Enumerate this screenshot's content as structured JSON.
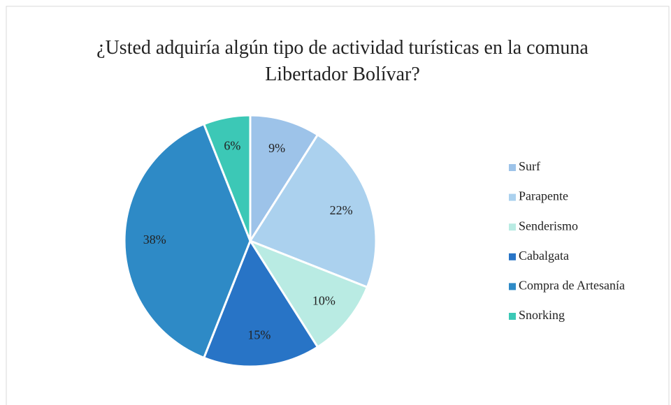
{
  "chart_data": {
    "type": "pie",
    "title": "¿Usted adquiría algún tipo de actividad turísticas en la comuna Libertador Bolívar?",
    "categories": [
      "Surf",
      "Parapente",
      "Senderismo",
      "Cabalgata",
      "Compra de Artesanía",
      "Snorking"
    ],
    "values": [
      9,
      22,
      10,
      15,
      38,
      6
    ],
    "value_labels": [
      "9%",
      "22%",
      "10%",
      "15%",
      "38%",
      "6%"
    ],
    "colors": [
      "#9dc3e9",
      "#abd1ee",
      "#b9ebe3",
      "#2874c6",
      "#2e8ac6",
      "#3cc8b6"
    ],
    "legend": "right"
  }
}
